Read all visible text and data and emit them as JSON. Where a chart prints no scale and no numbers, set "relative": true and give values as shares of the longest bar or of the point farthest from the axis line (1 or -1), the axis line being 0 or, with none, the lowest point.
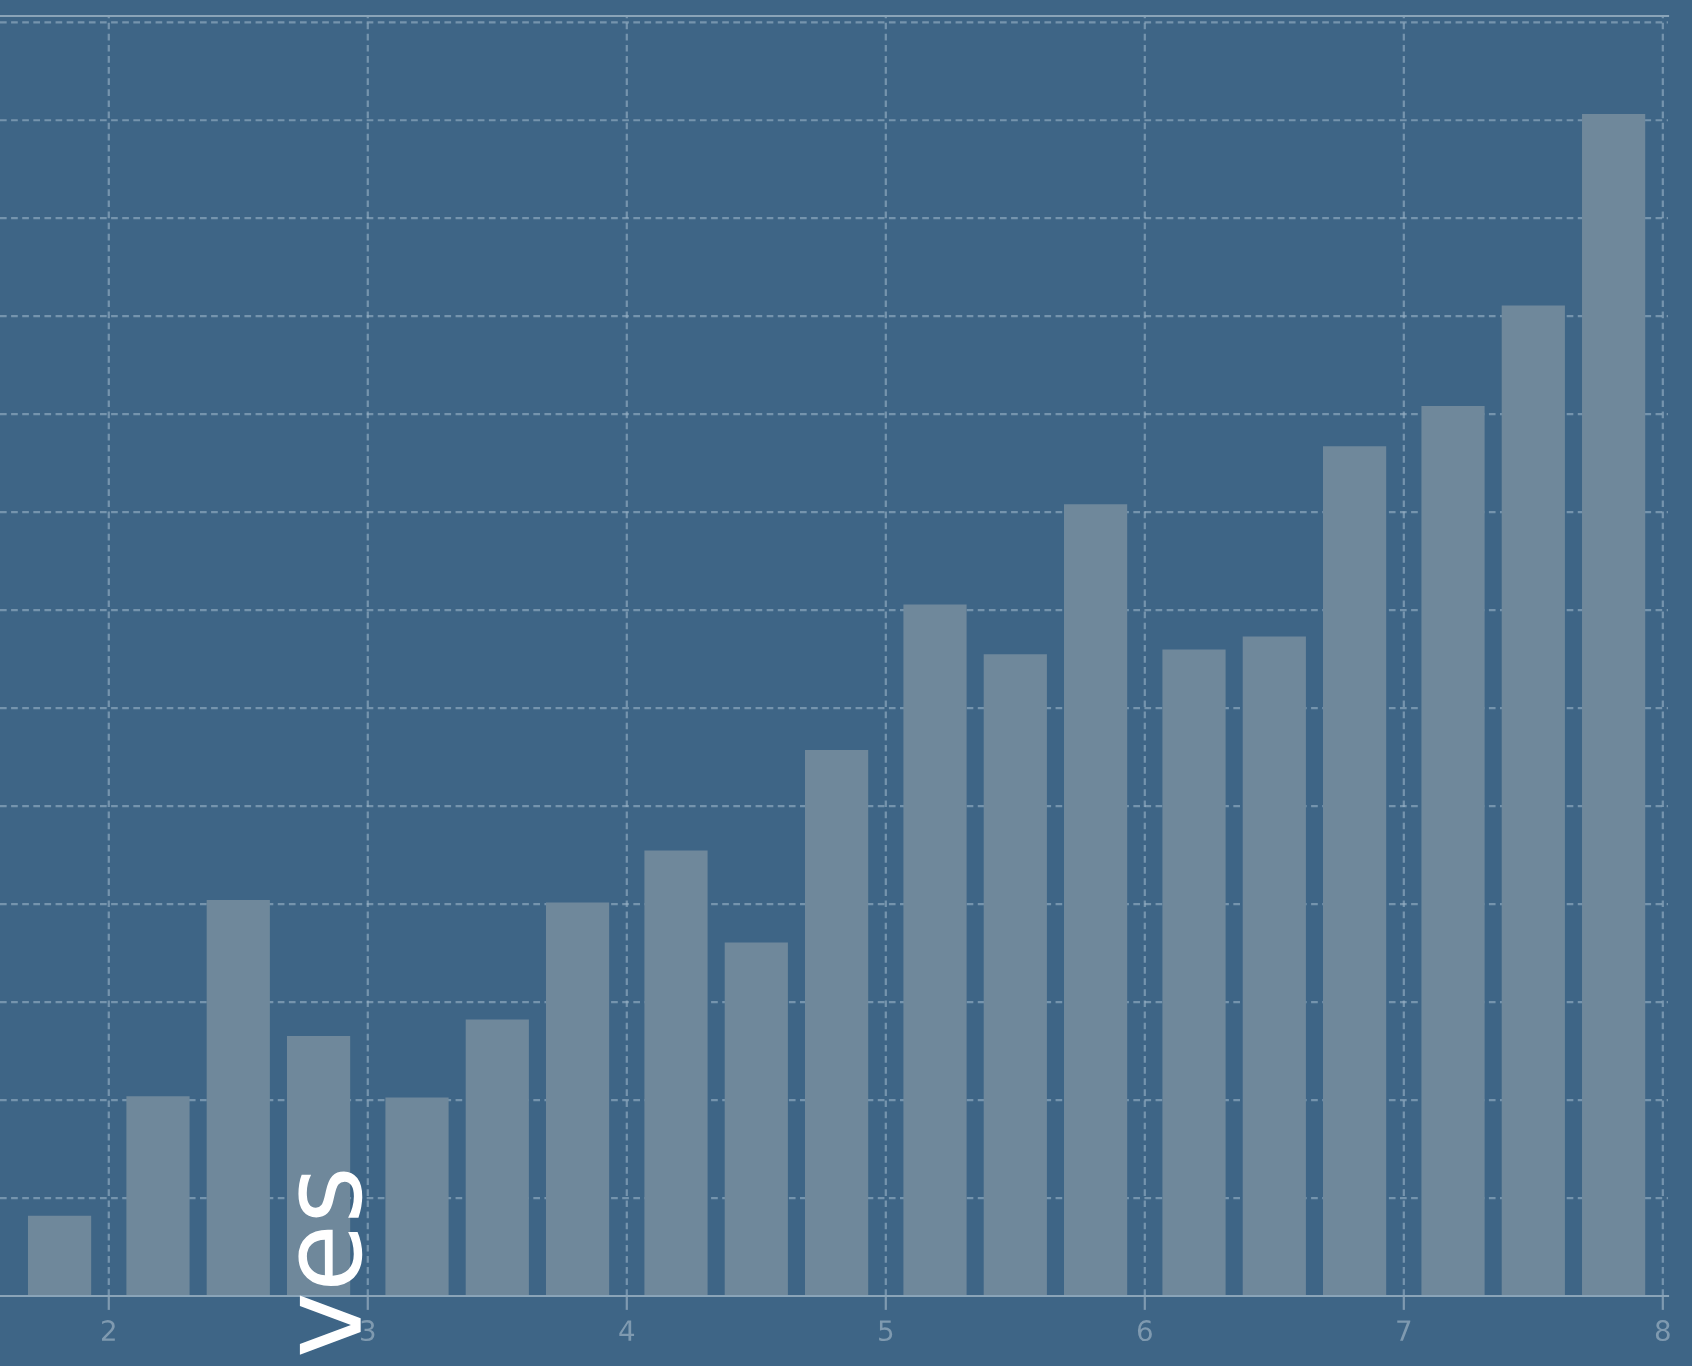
{
  "chart_data": {
    "type": "bar",
    "relative": true,
    "x": [
      1.81,
      2.19,
      2.5,
      2.81,
      3.19,
      3.5,
      3.81,
      4.19,
      4.5,
      4.81,
      5.19,
      5.5,
      5.81,
      6.19,
      6.5,
      6.81,
      7.19,
      7.5,
      7.81
    ],
    "values": [
      0.068,
      0.169,
      0.335,
      0.22,
      0.168,
      0.234,
      0.333,
      0.377,
      0.299,
      0.462,
      0.585,
      0.543,
      0.67,
      0.547,
      0.558,
      0.719,
      0.753,
      0.838,
      1
    ],
    "color": "#6f889b",
    "xlim": [
      1.58,
      8.02
    ],
    "xticks": [
      2,
      3,
      4,
      5,
      6,
      7,
      8
    ],
    "grid": true,
    "annotations": [
      "ves"
    ]
  }
}
